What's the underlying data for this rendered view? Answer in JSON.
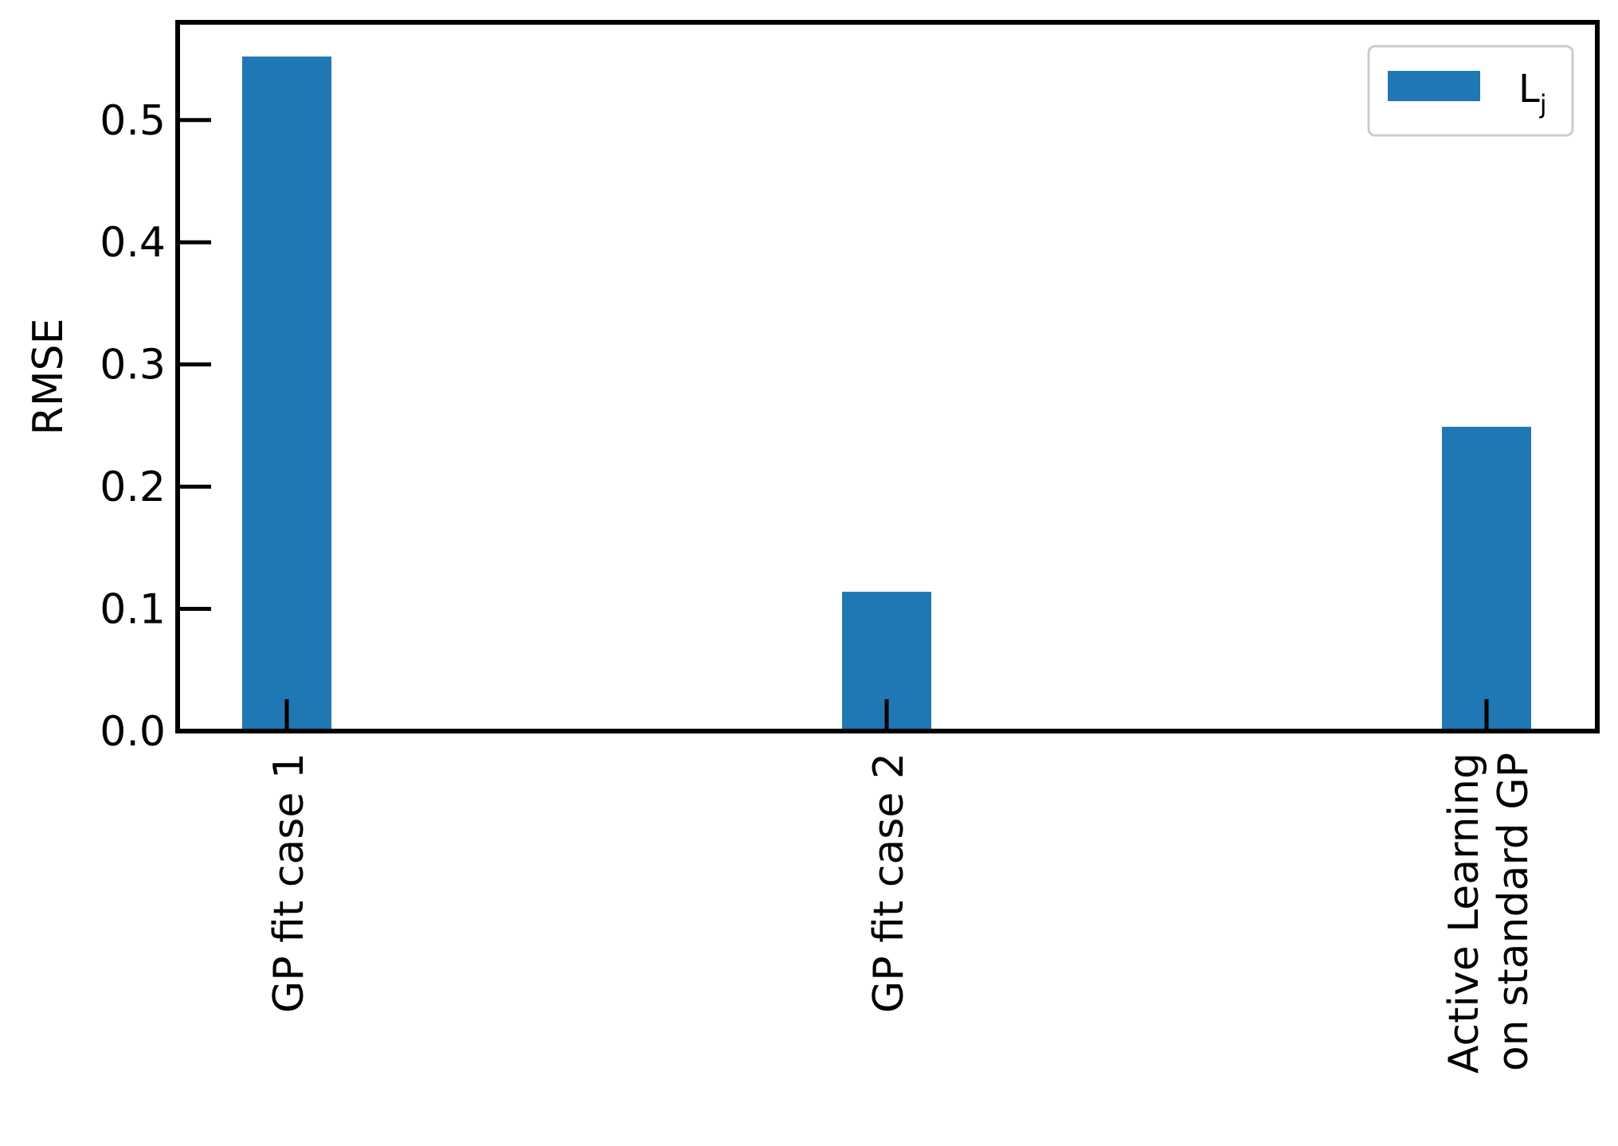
{
  "chart_data": {
    "type": "bar",
    "categories": [
      "GP fit case 1",
      "GP fit case 2",
      "Active Learning\non standard GP"
    ],
    "series": [
      {
        "name": "L_j",
        "legend_main": "L",
        "legend_sub": "j",
        "values": [
          0.552,
          0.114,
          0.249
        ],
        "color": "#1f77b4"
      }
    ],
    "ylabel": "RMSE",
    "xlabel": "",
    "title": "",
    "ylim": [
      0.0,
      0.58
    ],
    "yticks": [
      0.0,
      0.1,
      0.2,
      0.3,
      0.4,
      0.5
    ],
    "ytick_labels": [
      "0.0",
      "0.1",
      "0.2",
      "0.3",
      "0.4",
      "0.5"
    ],
    "grid": false,
    "legend_position": "top-right"
  }
}
